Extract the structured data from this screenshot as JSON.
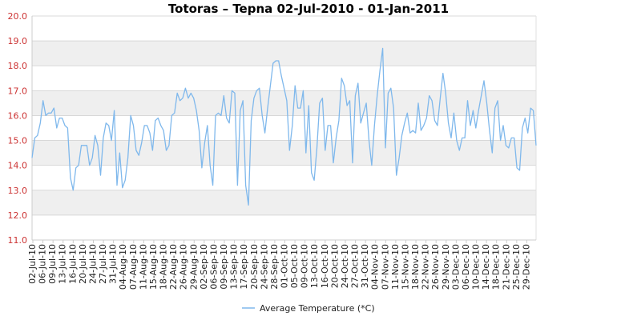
{
  "chart_data": {
    "type": "line",
    "title": "Totoras – Tepna  02-Jul-2010 - 01-Jan-2011",
    "ylim": [
      11,
      20
    ],
    "yticks": [
      "11.0",
      "12.0",
      "13.0",
      "14.0",
      "15.0",
      "16.0",
      "17.0",
      "18.0",
      "19.0",
      "20.0"
    ],
    "x_tick_labels": [
      "02-Jul-10",
      "06-Jul-10",
      "09-Jul-10",
      "13-Jul-10",
      "16-Jul-10",
      "20-Jul-10",
      "24-Jul-10",
      "27-Jul-10",
      "31-Jul-10",
      "04-Aug-10",
      "07-Aug-10",
      "11-Aug-10",
      "15-Aug-10",
      "18-Aug-10",
      "22-Aug-10",
      "26-Aug-10",
      "29-Aug-10",
      "02-Sep-10",
      "06-Sep-10",
      "09-Sep-10",
      "13-Sep-10",
      "17-Sep-10",
      "20-Sep-10",
      "24-Sep-10",
      "28-Sep-10",
      "01-Oct-10",
      "05-Oct-10",
      "09-Oct-10",
      "13-Oct-10",
      "16-Oct-10",
      "20-Oct-10",
      "24-Oct-10",
      "27-Oct-10",
      "31-Oct-10",
      "04-Nov-10",
      "07-Nov-10",
      "11-Nov-10",
      "15-Nov-10",
      "18-Nov-10",
      "22-Nov-10",
      "26-Nov-10",
      "29-Nov-10",
      "03-Dec-10",
      "06-Dec-10",
      "10-Dec-10",
      "14-Dec-10",
      "18-Dec-10",
      "21-Dec-10",
      "25-Dec-10",
      "29-Dec-10"
    ],
    "series": [
      {
        "name": "Average Temperature (*C)",
        "color": "#7fb8ec",
        "values": [
          14.3,
          15.1,
          15.2,
          15.7,
          16.6,
          16.0,
          16.1,
          16.1,
          16.3,
          15.5,
          15.9,
          15.9,
          15.6,
          15.5,
          13.5,
          13.0,
          13.9,
          14.0,
          14.8,
          14.8,
          14.8,
          14.0,
          14.3,
          15.2,
          14.8,
          13.6,
          15.1,
          15.7,
          15.6,
          15.0,
          16.2,
          13.2,
          14.5,
          13.1,
          13.4,
          14.3,
          16.0,
          15.6,
          14.6,
          14.4,
          14.9,
          15.6,
          15.6,
          15.3,
          14.6,
          15.8,
          15.9,
          15.6,
          15.4,
          14.6,
          14.8,
          16.0,
          16.1,
          16.9,
          16.6,
          16.7,
          17.1,
          16.7,
          16.9,
          16.7,
          16.2,
          15.4,
          13.9,
          14.9,
          15.6,
          14.0,
          13.2,
          16.0,
          16.1,
          16.0,
          16.8,
          15.9,
          15.7,
          17.0,
          16.9,
          13.2,
          16.2,
          16.6,
          13.2,
          12.4,
          15.8,
          16.7,
          17.0,
          17.1,
          16.0,
          15.3,
          16.3,
          17.2,
          18.1,
          18.2,
          18.2,
          17.6,
          17.1,
          16.6,
          14.6,
          15.6,
          17.2,
          16.3,
          16.3,
          17.0,
          14.5,
          16.4,
          13.7,
          13.4,
          14.7,
          16.5,
          16.7,
          14.6,
          15.6,
          15.6,
          14.1,
          15.1,
          15.8,
          17.5,
          17.2,
          16.4,
          16.6,
          14.1,
          16.8,
          17.3,
          15.7,
          16.1,
          16.5,
          15.0,
          14.0,
          15.6,
          16.8,
          17.8,
          18.7,
          14.7,
          16.9,
          17.1,
          16.3,
          13.6,
          14.3,
          15.2,
          15.7,
          16.1,
          15.3,
          15.4,
          15.3,
          16.5,
          15.4,
          15.6,
          15.9,
          16.8,
          16.6,
          15.8,
          15.6,
          16.7,
          17.7,
          16.9,
          15.7,
          15.1,
          16.1,
          15.0,
          14.6,
          15.1,
          15.1,
          16.6,
          15.6,
          16.2,
          15.5,
          16.2,
          16.8,
          17.4,
          16.5,
          15.4,
          14.5,
          16.3,
          16.6,
          15.0,
          15.6,
          14.8,
          14.7,
          15.1,
          15.1,
          13.9,
          13.8,
          15.5,
          15.9,
          15.3,
          16.3,
          16.2,
          14.8
        ]
      }
    ],
    "grid": "horizontal",
    "band_colors": [
      "#ffffff",
      "#efefef"
    ],
    "legend_position": "bottom-center"
  }
}
